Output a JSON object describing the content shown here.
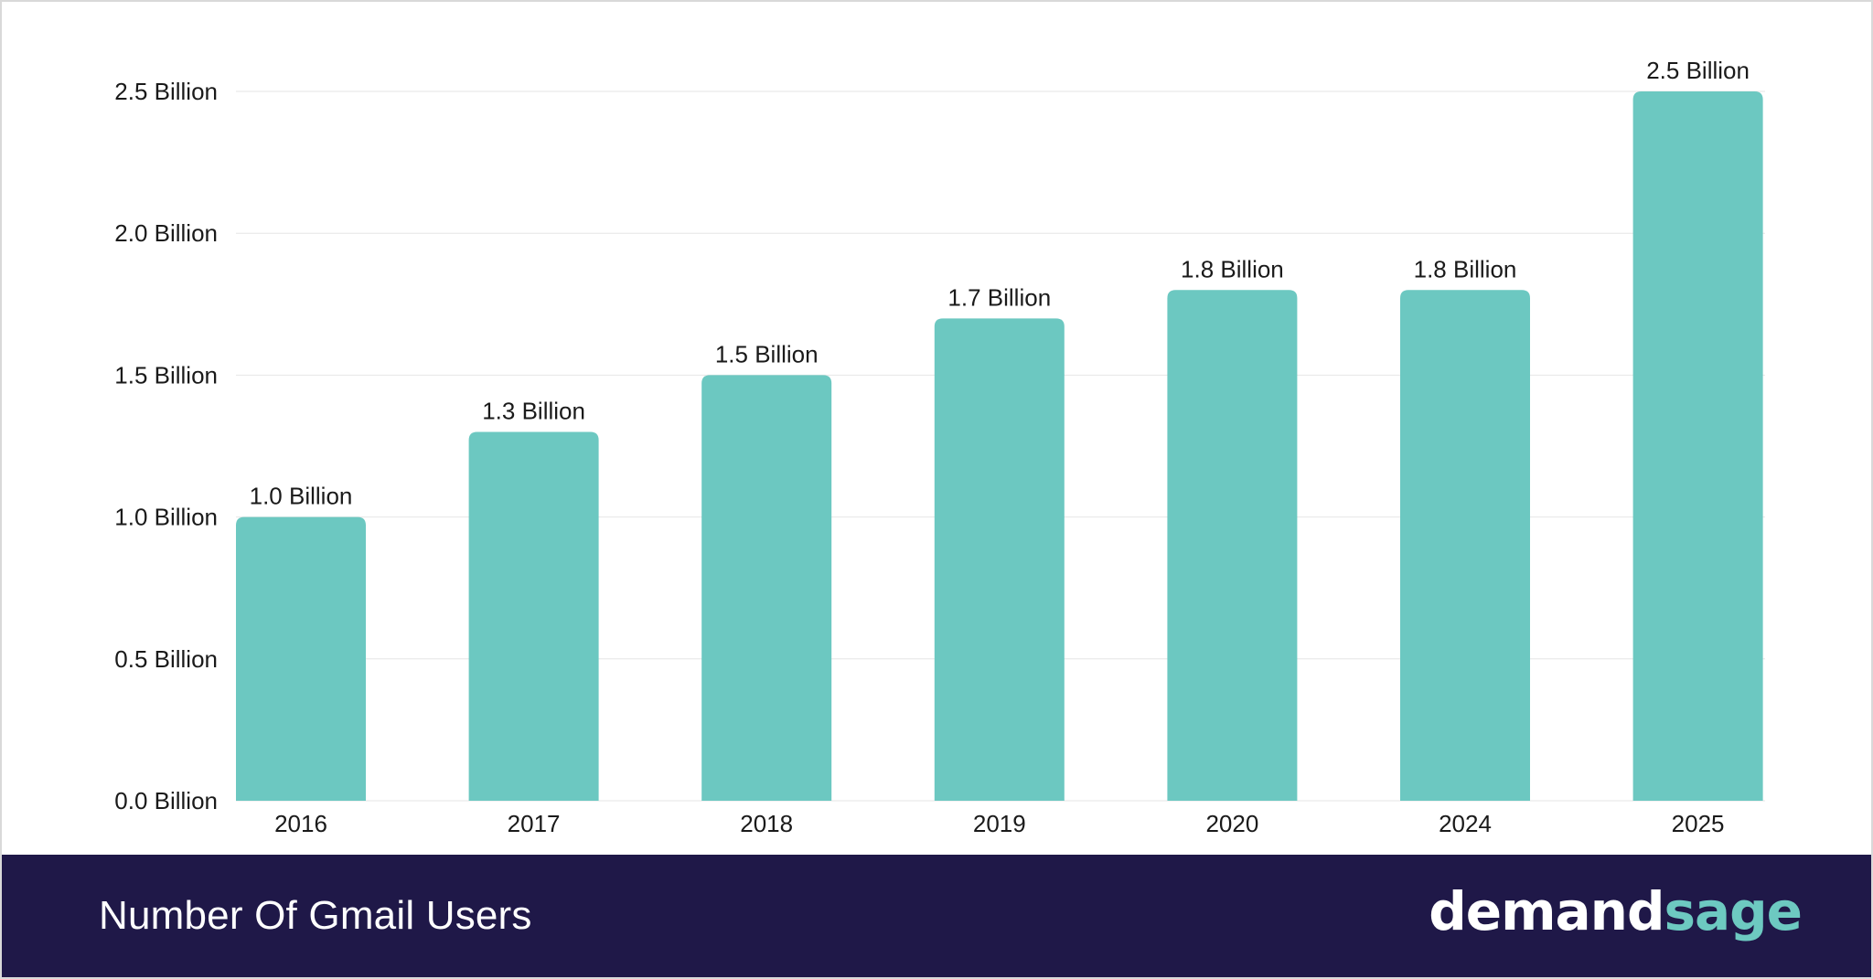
{
  "colors": {
    "bar": "#6cc8c1",
    "grid": "#e6e6e6",
    "text": "#1a1a1a",
    "footer_bg": "#1f1848",
    "brand_accent": "#6dc9c1"
  },
  "footer": {
    "title": "Number Of Gmail Users",
    "brand_part_a": "demand",
    "brand_part_b": "sage"
  },
  "chart_data": {
    "type": "bar",
    "title": "Number Of Gmail Users",
    "xlabel": "",
    "ylabel": "",
    "categories": [
      "2016",
      "2017",
      "2018",
      "2019",
      "2020",
      "2024",
      "2025"
    ],
    "values": [
      1.0,
      1.3,
      1.5,
      1.7,
      1.8,
      1.8,
      2.5
    ],
    "value_labels": [
      "1.0 Billion",
      "1.3 Billion",
      "1.5 Billion",
      "1.7 Billion",
      "1.8 Billion",
      "1.8 Billion",
      "2.5 Billion"
    ],
    "unit": "Billion",
    "ylim": [
      0,
      2.5
    ],
    "yticks": [
      0.0,
      0.5,
      1.0,
      1.5,
      2.0,
      2.5
    ],
    "ytick_labels": [
      "0.0 Billion",
      "0.5 Billion",
      "1.0 Billion",
      "1.5 Billion",
      "2.0 Billion",
      "2.5 Billion"
    ],
    "grid": true,
    "legend": "none"
  }
}
